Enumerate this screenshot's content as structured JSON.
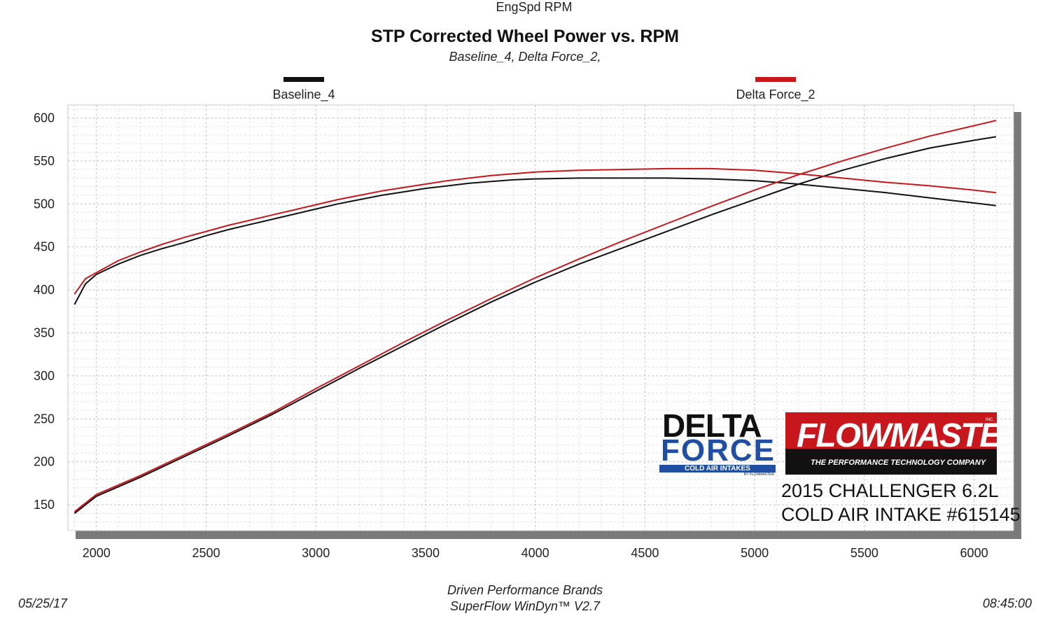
{
  "chart_data": {
    "type": "line",
    "title": "STP Corrected Wheel Power vs. RPM",
    "subtitle": "Baseline_4, Delta Force_2,",
    "xlabel": "EngSpd  RPM",
    "ylabel": "",
    "xlim": [
      1870,
      6180
    ],
    "ylim": [
      120,
      615
    ],
    "x_ticks": [
      2000,
      2500,
      3000,
      3500,
      4000,
      4500,
      5000,
      5500,
      6000
    ],
    "y_ticks": [
      150,
      200,
      250,
      300,
      350,
      400,
      450,
      500,
      550,
      600
    ],
    "grid": true,
    "legend_position": "top",
    "series": [
      {
        "name": "Baseline_4",
        "color": "#111111",
        "curves": [
          {
            "x": [
              1900,
              1950,
              2000,
              2100,
              2200,
              2300,
              2400,
              2500,
              2600,
              2700,
              2800,
              2900,
              3000,
              3100,
              3200,
              3300,
              3400,
              3500,
              3600,
              3700,
              3800,
              3900,
              4000,
              4200,
              4400,
              4600,
              4800,
              5000,
              5200,
              5400,
              5600,
              5800,
              6000,
              6100
            ],
            "y": [
              383,
              407,
              418,
              430,
              440,
              448,
              455,
              463,
              470,
              476,
              482,
              488,
              494,
              500,
              505,
              510,
              514,
              518,
              521,
              524,
              526,
              528,
              529,
              530,
              530,
              530,
              529,
              527,
              523,
              518,
              513,
              507,
              501,
              498
            ]
          },
          {
            "x": [
              1900,
              2000,
              2200,
              2400,
              2600,
              2800,
              3000,
              3200,
              3400,
              3600,
              3800,
              4000,
              4200,
              4400,
              4600,
              4800,
              5000,
              5200,
              5400,
              5600,
              5800,
              6000,
              6100
            ],
            "y": [
              140,
              160,
              182,
              206,
              230,
              255,
              282,
              309,
              335,
              361,
              386,
              409,
              430,
              449,
              468,
              487,
              505,
              523,
              539,
              553,
              565,
              574,
              578
            ]
          }
        ]
      },
      {
        "name": "Delta Force_2",
        "color": "#c8161d",
        "curves": [
          {
            "x": [
              1900,
              1950,
              2000,
              2100,
              2200,
              2300,
              2400,
              2500,
              2600,
              2700,
              2800,
              2900,
              3000,
              3100,
              3200,
              3300,
              3400,
              3500,
              3600,
              3700,
              3800,
              3900,
              4000,
              4200,
              4400,
              4600,
              4800,
              5000,
              5200,
              5400,
              5600,
              5800,
              6000,
              6100
            ],
            "y": [
              395,
              413,
              420,
              434,
              444,
              453,
              461,
              468,
              475,
              481,
              487,
              493,
              499,
              505,
              510,
              515,
              519,
              523,
              527,
              530,
              533,
              535,
              537,
              539,
              540,
              541,
              541,
              539,
              535,
              530,
              525,
              521,
              516,
              513
            ]
          },
          {
            "x": [
              1900,
              2000,
              2200,
              2400,
              2600,
              2800,
              3000,
              3200,
              3400,
              3600,
              3800,
              4000,
              4200,
              4400,
              4600,
              4800,
              5000,
              5200,
              5400,
              5600,
              5800,
              6000,
              6100
            ],
            "y": [
              142,
              162,
              184,
              208,
              232,
              257,
              285,
              312,
              339,
              365,
              390,
              414,
              436,
              457,
              477,
              497,
              516,
              534,
              550,
              565,
              579,
              591,
              597
            ]
          }
        ]
      }
    ]
  },
  "footer": {
    "company": "Driven Performance Brands",
    "software": "SuperFlow WinDyn™  V2.7",
    "date": "05/25/17",
    "time": "08:45:00"
  },
  "caption": {
    "line1": "2015 CHALLENGER 6.2L",
    "line2": "COLD AIR INTAKE #615145"
  },
  "logos": {
    "delta_line1": "DELTA",
    "delta_line2": "FORCE",
    "delta_bar": "COLD AIR INTAKES",
    "delta_by": "BY FLOWMASTER",
    "flowmaster_word": "FLOWMASTER",
    "flowmaster_inc": "INC.",
    "flowmaster_tag": "THE PERFORMANCE TECHNOLOGY COMPANY"
  }
}
